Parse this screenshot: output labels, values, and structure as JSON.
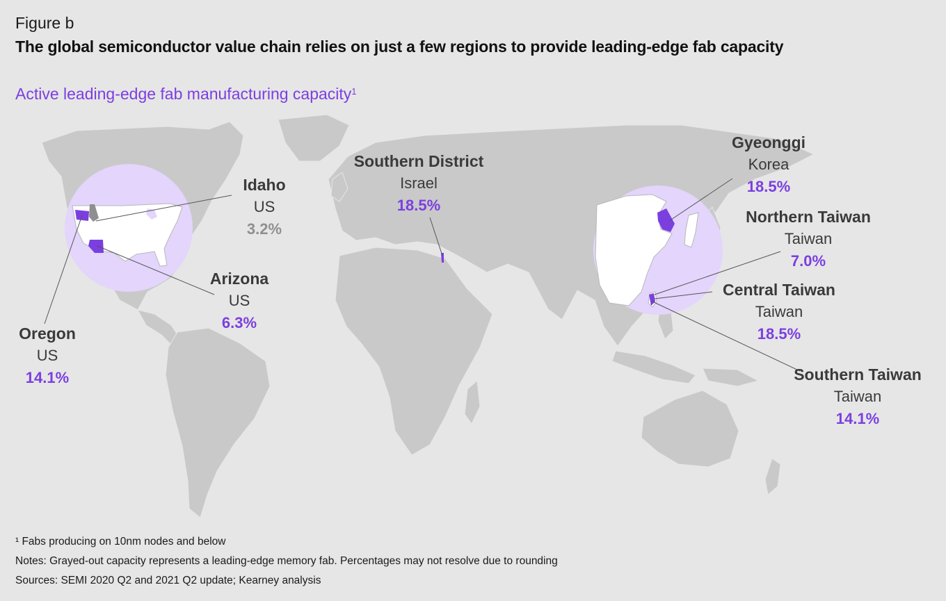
{
  "figure_label": "Figure b",
  "title": "The global semiconductor value chain relies on just a few regions to provide leading-edge fab capacity",
  "subtitle": "Active leading-edge fab manufacturing capacity",
  "subtitle_marker": "1",
  "colors": {
    "accent": "#7b3fe0",
    "highlight_circle": "#e3d5fb",
    "land": "#c9c9c9",
    "background": "#e6e6e6",
    "memory_fab_gray": "#8f8f8f"
  },
  "regions": [
    {
      "name": "Idaho",
      "country": "US",
      "share": "3.2%",
      "memory_fab": true
    },
    {
      "name": "Oregon",
      "country": "US",
      "share": "14.1%",
      "memory_fab": false
    },
    {
      "name": "Arizona",
      "country": "US",
      "share": "6.3%",
      "memory_fab": false
    },
    {
      "name": "Southern District",
      "country": "Israel",
      "share": "18.5%",
      "memory_fab": false
    },
    {
      "name": "Gyeonggi",
      "country": "Korea",
      "share": "18.5%",
      "memory_fab": false
    },
    {
      "name": "Northern Taiwan",
      "country": "Taiwan",
      "share": "7.0%",
      "memory_fab": false
    },
    {
      "name": "Central Taiwan",
      "country": "Taiwan",
      "share": "18.5%",
      "memory_fab": false
    },
    {
      "name": "Southern Taiwan",
      "country": "Taiwan",
      "share": "14.1%",
      "memory_fab": false
    }
  ],
  "notes": {
    "footnote": "¹ Fabs producing on 10nm nodes and below",
    "notes": "Notes: Grayed-out capacity represents a leading-edge memory fab. Percentages may not resolve due to rounding",
    "sources": "Sources: SEMI 2020 Q2 and 2021 Q2 update; Kearney analysis"
  }
}
